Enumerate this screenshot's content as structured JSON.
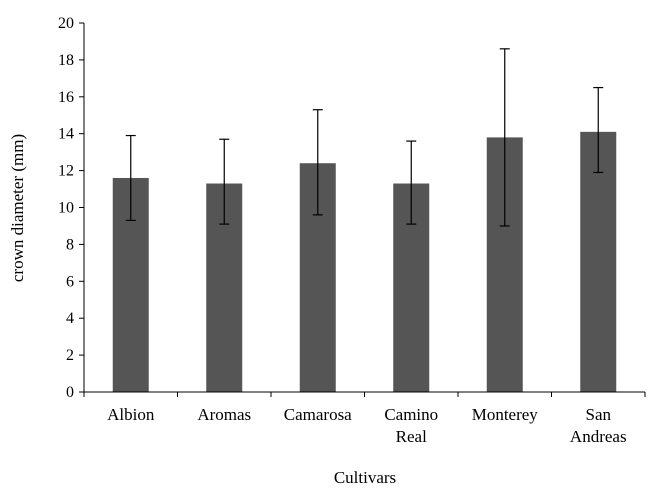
{
  "chart_data": {
    "type": "bar",
    "title": "",
    "xlabel": "Cultivars",
    "ylabel": "crown diameter (mm)",
    "ylim": [
      0,
      20
    ],
    "yticks": [
      0,
      2,
      4,
      6,
      8,
      10,
      12,
      14,
      16,
      18,
      20
    ],
    "grid": false,
    "legend": "none",
    "bar_color": "#555555",
    "categories": [
      [
        "Albion"
      ],
      [
        "Aromas"
      ],
      [
        "Camarosa"
      ],
      [
        "Camino",
        "Real"
      ],
      [
        "Monterey"
      ],
      [
        "San",
        "Andreas"
      ]
    ],
    "values": [
      11.6,
      11.3,
      12.4,
      11.3,
      13.8,
      14.1
    ],
    "error_low": [
      9.3,
      9.1,
      9.6,
      9.1,
      9.0,
      11.9
    ],
    "error_high": [
      13.9,
      13.7,
      15.3,
      13.6,
      18.6,
      16.5
    ]
  }
}
